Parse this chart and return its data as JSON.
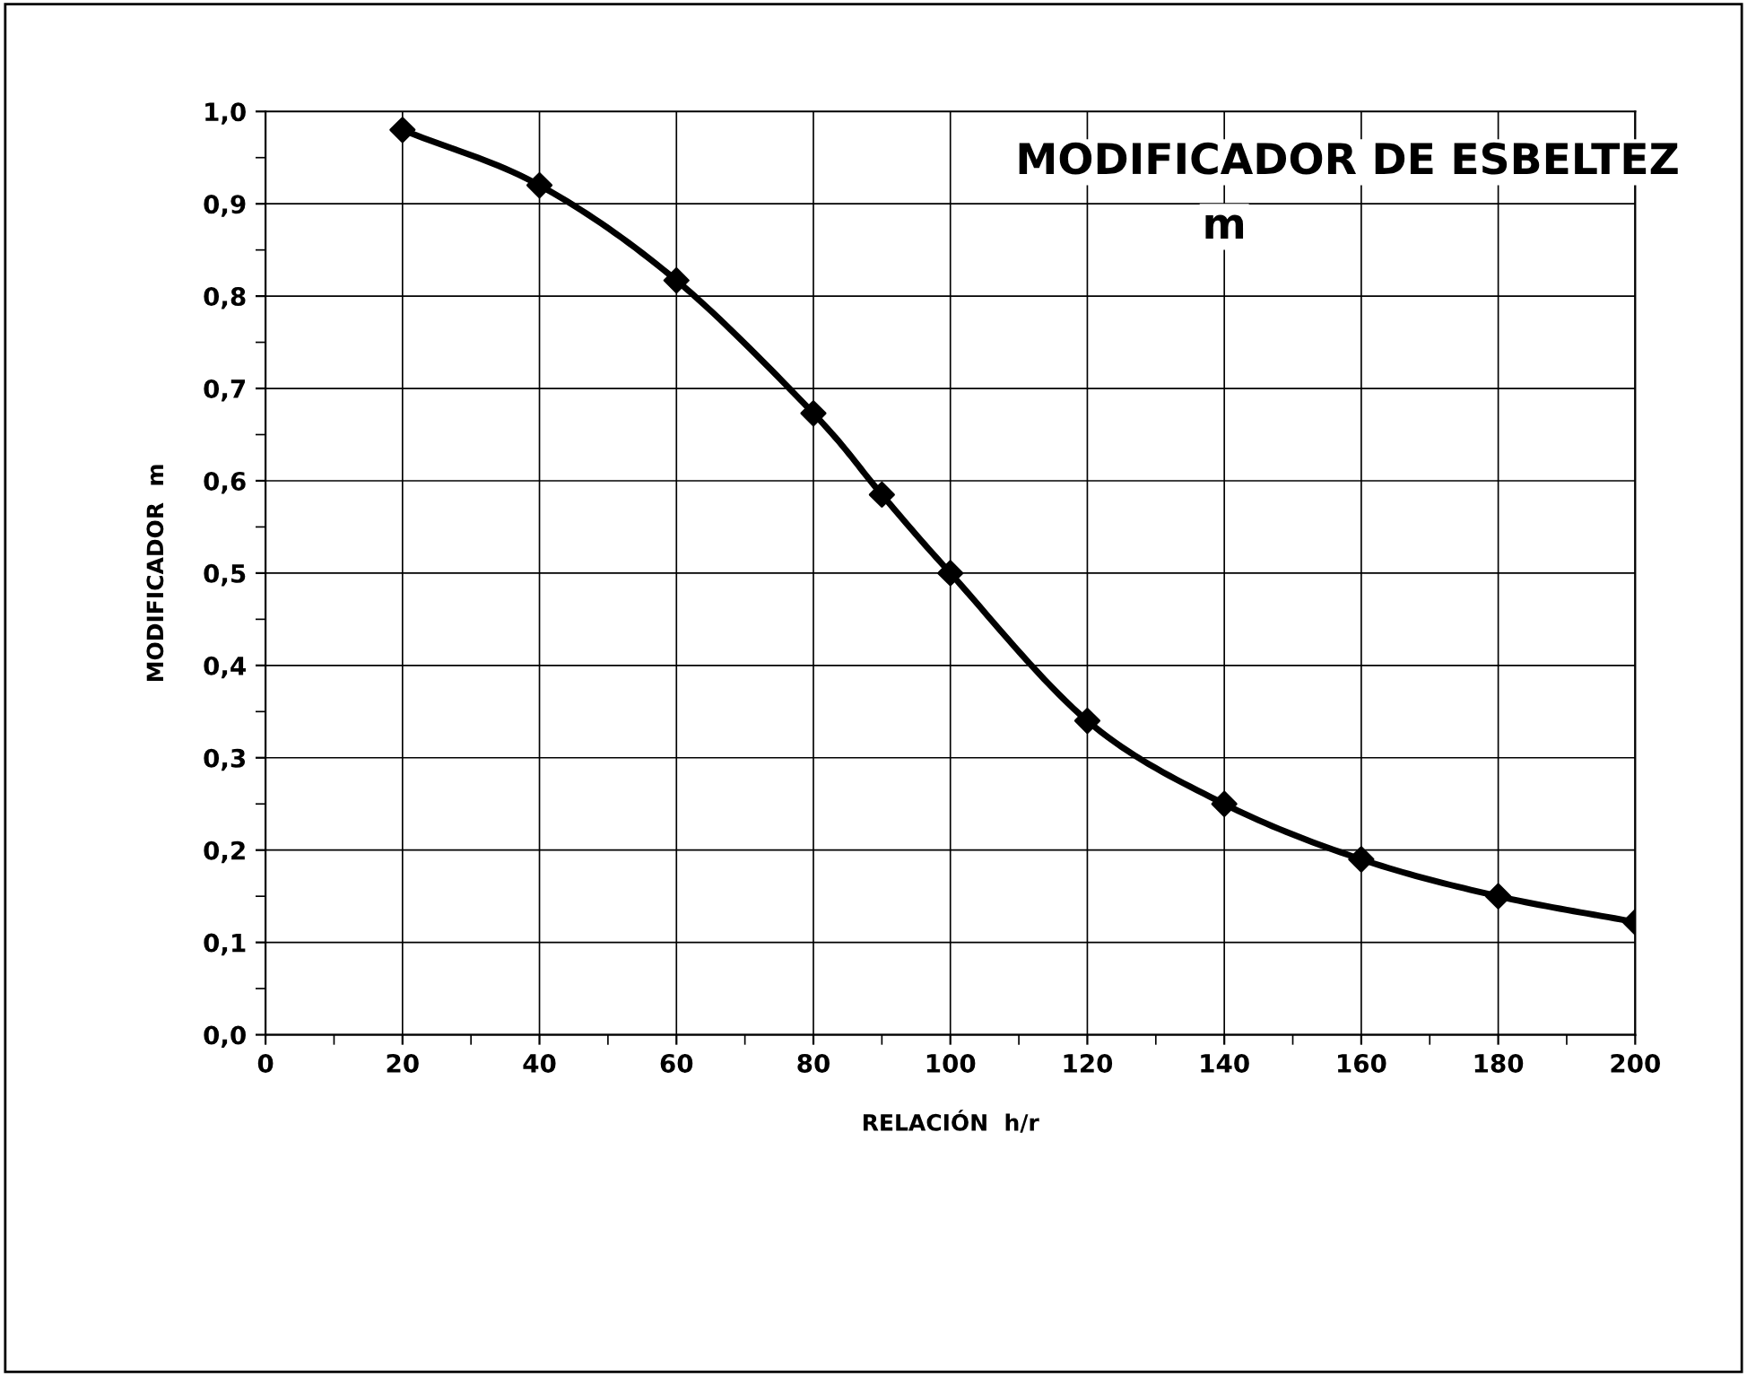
{
  "chart_data": {
    "type": "line",
    "title": "MODIFICADOR DE ESBELTEZ",
    "subtitle": "m",
    "xlabel": "RELACIÓN  h/r",
    "ylabel": "MODIFICADOR  m",
    "x": [
      20,
      40,
      60,
      80,
      90,
      100,
      120,
      140,
      160,
      180,
      200
    ],
    "series": [
      {
        "color": "#000000",
        "values": [
          0.98,
          0.92,
          0.817,
          0.673,
          0.585,
          0.5,
          0.34,
          0.25,
          0.19,
          0.15,
          0.122
        ]
      }
    ],
    "xlim": [
      0,
      200
    ],
    "xticks": [
      0,
      20,
      40,
      60,
      80,
      100,
      120,
      140,
      160,
      180,
      200
    ],
    "ylim": [
      0,
      1
    ],
    "yticks": [
      {
        "value": 0,
        "label": "0,0"
      },
      {
        "value": 0.1,
        "label": "0,1"
      },
      {
        "value": 0.2,
        "label": "0,2"
      },
      {
        "value": 0.3,
        "label": "0,3"
      },
      {
        "value": 0.4,
        "label": "0,4"
      },
      {
        "value": 0.5,
        "label": "0,5"
      },
      {
        "value": 0.6,
        "label": "0,6"
      },
      {
        "value": 0.7,
        "label": "0,7"
      },
      {
        "value": 0.8,
        "label": "0,8"
      },
      {
        "value": 0.9,
        "label": "0,9"
      },
      {
        "value": 1,
        "label": "1,0"
      }
    ],
    "grid": true,
    "marker": "diamond",
    "line_style": "solid",
    "legend": false
  }
}
